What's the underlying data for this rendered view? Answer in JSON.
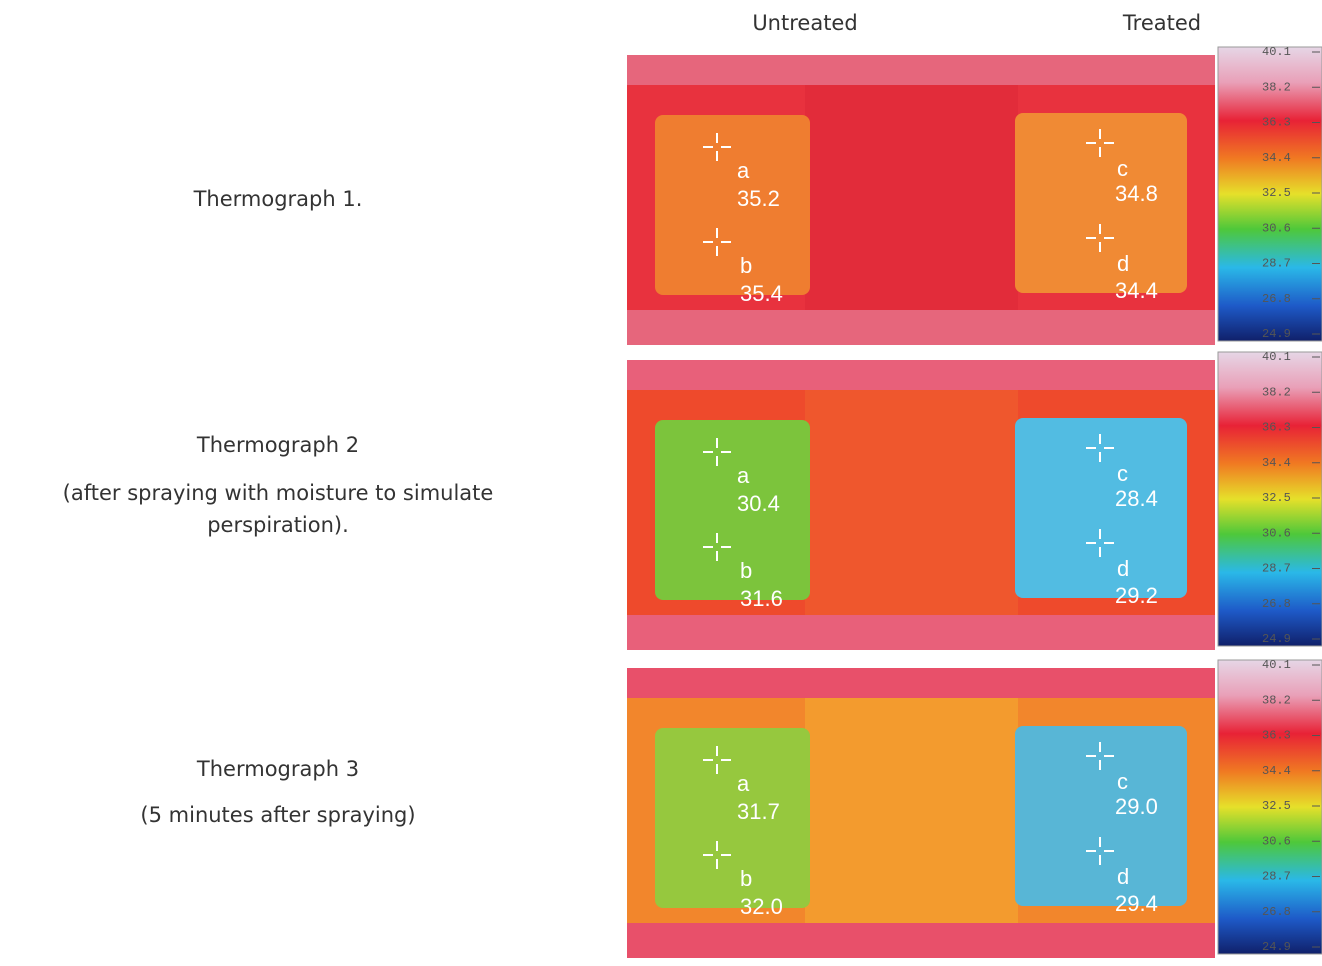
{
  "column_headers": [
    "Untreated",
    "Treated"
  ],
  "thermographs": [
    {
      "caption": [
        "Thermograph 1."
      ],
      "points": [
        {
          "label": "a",
          "temperature": "35.2"
        },
        {
          "label": "b",
          "temperature": "35.4"
        },
        {
          "label": "c",
          "temperature": "34.8"
        },
        {
          "label": "d",
          "temperature": "34.4"
        }
      ]
    },
    {
      "caption": [
        "Thermograph 2",
        "(after spraying with moisture to simulate",
        "perspiration)."
      ],
      "points": [
        {
          "label": "a",
          "temperature": "30.4"
        },
        {
          "label": "b",
          "temperature": "31.6"
        },
        {
          "label": "c",
          "temperature": "28.4"
        },
        {
          "label": "d",
          "temperature": "29.2"
        }
      ]
    },
    {
      "caption": [
        "Thermograph 3",
        "(5 minutes after spraying)"
      ],
      "points": [
        {
          "label": "a",
          "temperature": "31.7"
        },
        {
          "label": "b",
          "temperature": "32.0"
        },
        {
          "label": "c",
          "temperature": "29.0"
        },
        {
          "label": "d",
          "temperature": "29.4"
        }
      ]
    }
  ],
  "scale": [
    "40.1",
    "38.2",
    "36.3",
    "34.4",
    "32.5",
    "30.6",
    "28.7",
    "26.8",
    "24.9"
  ]
}
